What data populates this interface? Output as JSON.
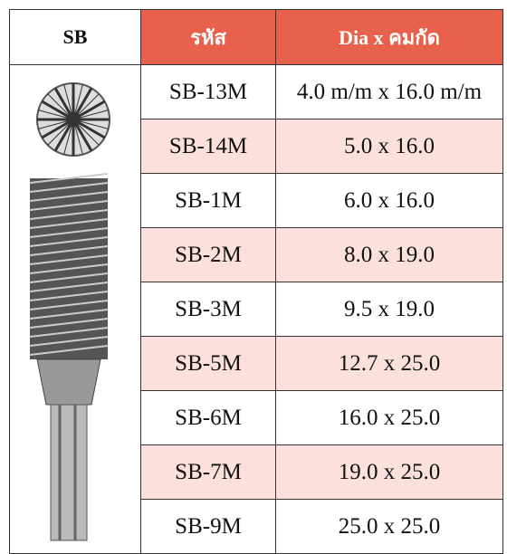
{
  "table": {
    "header": [
      "SB",
      "รหัส",
      "Dia x คมกัด"
    ],
    "rows": [
      [
        "SB-13M",
        "4.0 m/m x 16.0 m/m"
      ],
      [
        "SB-14M",
        "5.0 x 16.0"
      ],
      [
        "SB-1M",
        "6.0 x 16.0"
      ],
      [
        "SB-2M",
        "8.0 x 19.0"
      ],
      [
        "SB-3M",
        "9.5 x 19.0"
      ],
      [
        "SB-5M",
        "12.7 x 25.0"
      ],
      [
        "SB-6M",
        "16.0 x 25.0"
      ],
      [
        "SB-7M",
        "19.0 x 25.0"
      ],
      [
        "SB-9M",
        "25.0 x 25.0"
      ]
    ]
  }
}
